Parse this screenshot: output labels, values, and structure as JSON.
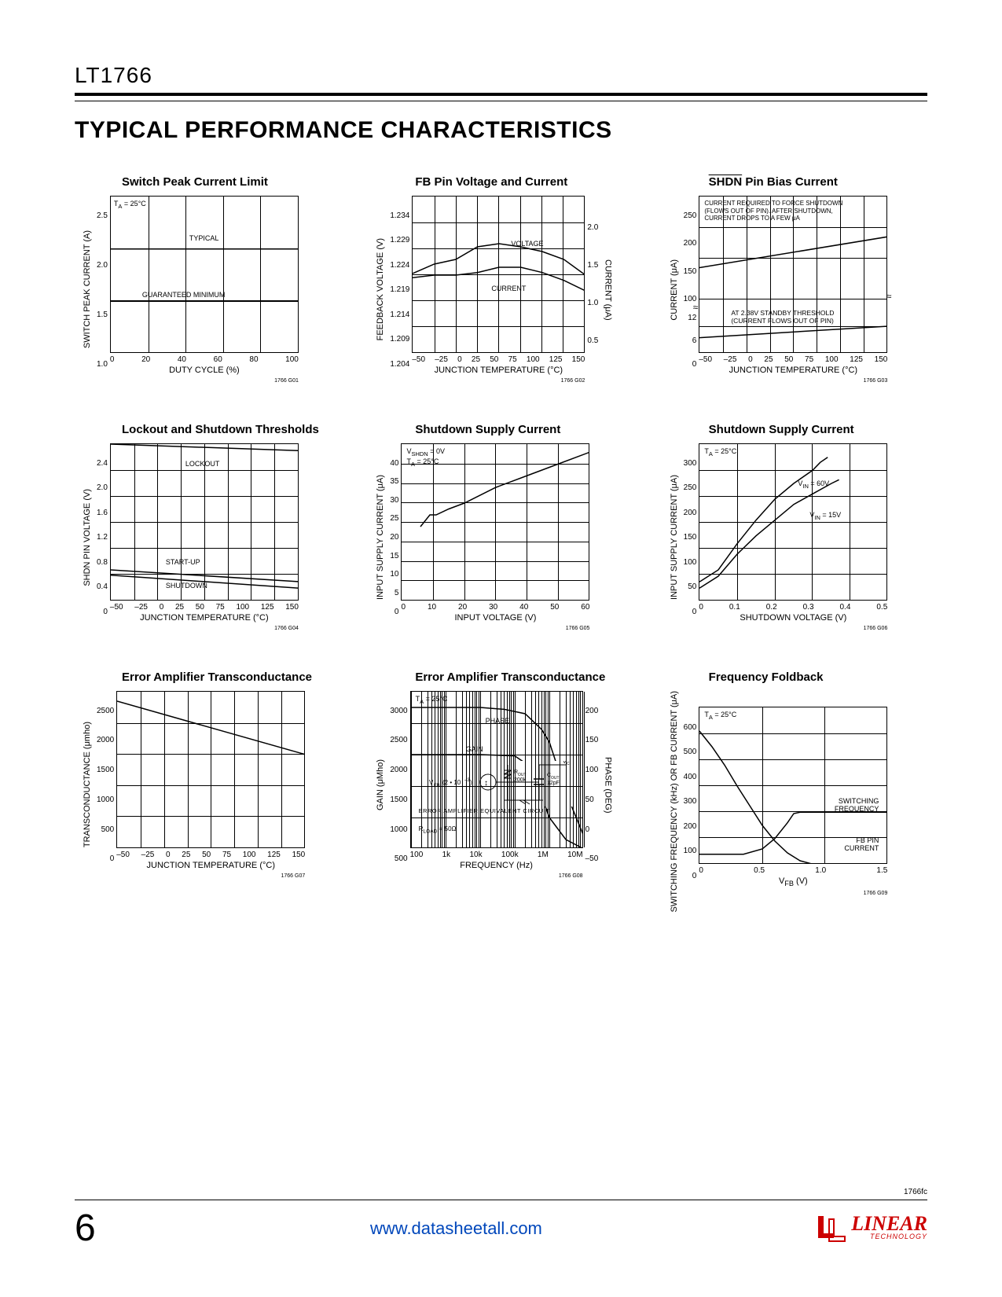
{
  "meta": {
    "part_number": "LT1766",
    "section_title": "TYPICAL PERFORMANCE CHARACTERISTICS",
    "doc_code": "1766fc",
    "page_number": "6",
    "footer_url": "www.datasheetall.com",
    "logo_brand": "LINEAR",
    "logo_sub": "TECHNOLOGY"
  },
  "charts": {
    "c1": {
      "title": "Switch Peak Current Limit",
      "ylabel": "SWITCH PEAK CURRENT (A)",
      "xlabel": "DUTY CYCLE (%)",
      "graph_id": "1766 G01",
      "xlim": [
        0,
        100
      ],
      "xticks": [
        "0",
        "20",
        "40",
        "60",
        "80",
        "100"
      ],
      "ylim": [
        1.0,
        2.5
      ],
      "yticks": [
        "2.5",
        "2.0",
        "1.5",
        "1.0"
      ],
      "annotations": {
        "ta": "T_A = 25°C",
        "typical": "TYPICAL",
        "guaranteed": "GUARANTEED MINIMUM"
      },
      "series": [
        {
          "label": "TYPICAL",
          "points": [
            [
              0,
              2.0
            ],
            [
              100,
              2.0
            ]
          ]
        },
        {
          "label": "GUARANTEED MINIMUM",
          "points": [
            [
              0,
              1.5
            ],
            [
              100,
              1.5
            ]
          ]
        }
      ]
    },
    "c2": {
      "title": "FB Pin Voltage and Current",
      "ylabel": "FEEDBACK VOLTAGE (V)",
      "ylabel2": "CURRENT (μA)",
      "xlabel": "JUNCTION TEMPERATURE (°C)",
      "graph_id": "1766 G02",
      "xlim": [
        -50,
        150
      ],
      "xticks": [
        "–50",
        "–25",
        "0",
        "25",
        "50",
        "75",
        "100",
        "125",
        "150"
      ],
      "ylim": [
        1.204,
        1.234
      ],
      "yticks": [
        "1.234",
        "1.229",
        "1.224",
        "1.219",
        "1.214",
        "1.209",
        "1.204"
      ],
      "ylim2": [
        0,
        2.0
      ],
      "yticks2": [
        "2.0",
        "1.5",
        "1.0",
        "0.5"
      ],
      "annotations": {
        "voltage": "VOLTAGE",
        "current": "CURRENT"
      },
      "series": [
        {
          "label": "VOLTAGE",
          "points": [
            [
              -50,
              1.2185
            ],
            [
              -25,
              1.219
            ],
            [
              0,
              1.219
            ],
            [
              25,
              1.2195
            ],
            [
              50,
              1.2205
            ],
            [
              75,
              1.2205
            ],
            [
              100,
              1.2195
            ],
            [
              125,
              1.218
            ],
            [
              150,
              1.216
            ]
          ]
        },
        {
          "label": "CURRENT",
          "points": [
            [
              -50,
              0.51
            ],
            [
              -25,
              0.57
            ],
            [
              0,
              0.6
            ],
            [
              25,
              0.68
            ],
            [
              50,
              0.7
            ],
            [
              75,
              0.68
            ],
            [
              100,
              0.65
            ],
            [
              125,
              0.6
            ],
            [
              150,
              0.5
            ]
          ]
        }
      ]
    },
    "c3": {
      "title_overline": "SHDN",
      "title_rest": " Pin Bias Current",
      "ylabel": "CURRENT (μA)",
      "xlabel": "JUNCTION TEMPERATURE (°C)",
      "graph_id": "1766 G03",
      "xlim": [
        -50,
        150
      ],
      "xticks": [
        "–50",
        "–25",
        "0",
        "25",
        "50",
        "75",
        "100",
        "125",
        "150"
      ],
      "yticks_upper": [
        "250",
        "200",
        "150",
        "100"
      ],
      "yticks_lower": [
        "12",
        "6",
        "0"
      ],
      "annotations": {
        "a1": "CURRENT REQUIRED TO FORCE SHUTDOWN",
        "a2": "(FLOWS OUT OF PIN). AFTER SHUTDOWN,",
        "a3": "CURRENT DROPS TO A FEW μA",
        "b1": "AT 2.38V STANDBY THRESHOLD",
        "b2": "(CURRENT FLOWS OUT OF PIN)"
      },
      "series_upper": [
        [
          -50,
          135
        ],
        [
          150,
          185
        ]
      ],
      "series_lower": [
        [
          -50,
          3.5
        ],
        [
          150,
          6.0
        ]
      ]
    },
    "c4": {
      "title": "Lockout and Shutdown Thresholds",
      "ylabel": "SHDN PIN VOLTAGE (V)",
      "xlabel": "JUNCTION TEMPERATURE (°C)",
      "graph_id": "1766 G04",
      "xlim": [
        -50,
        150
      ],
      "xticks": [
        "–50",
        "–25",
        "0",
        "25",
        "50",
        "75",
        "100",
        "125",
        "150"
      ],
      "ylim": [
        0,
        2.4
      ],
      "yticks": [
        "2.4",
        "2.0",
        "1.6",
        "1.2",
        "0.8",
        "0.4",
        "0"
      ],
      "annotations": {
        "lockout": "LOCKOUT",
        "startup": "START-UP",
        "shutdown": "SHUTDOWN"
      },
      "series": [
        {
          "label": "LOCKOUT",
          "points": [
            [
              -50,
              2.4
            ],
            [
              150,
              2.3
            ]
          ]
        },
        {
          "label": "START-UP",
          "points": [
            [
              -50,
              0.48
            ],
            [
              150,
              0.3
            ]
          ]
        },
        {
          "label": "SHUTDOWN",
          "points": [
            [
              -50,
              0.4
            ],
            [
              150,
              0.2
            ]
          ]
        }
      ]
    },
    "c5": {
      "title": "Shutdown Supply Current",
      "ylabel": "INPUT SUPPLY CURRENT (μA)",
      "xlabel": "INPUT VOLTAGE (V)",
      "graph_id": "1766 G05",
      "xlim": [
        0,
        60
      ],
      "xticks": [
        "0",
        "10",
        "20",
        "30",
        "40",
        "50",
        "60"
      ],
      "ylim": [
        0,
        40
      ],
      "yticks": [
        "40",
        "35",
        "30",
        "25",
        "20",
        "15",
        "10",
        "5",
        "0"
      ],
      "annotations": {
        "a1": "V_SHDN = 0V",
        "a2": "T_A = 25°C"
      },
      "series": [
        {
          "points": [
            [
              6,
              19
            ],
            [
              9,
              22
            ],
            [
              11,
              22
            ],
            [
              15,
              23.5
            ],
            [
              20,
              25
            ],
            [
              30,
              29
            ],
            [
              40,
              32
            ],
            [
              50,
              35
            ],
            [
              60,
              38
            ]
          ]
        }
      ]
    },
    "c6": {
      "title": "Shutdown Supply Current",
      "ylabel": "INPUT SUPPLY CURRENT (μA)",
      "xlabel": "SHUTDOWN VOLTAGE (V)",
      "graph_id": "1766 G06",
      "xlim": [
        0,
        0.5
      ],
      "xticks": [
        "0",
        "0.1",
        "0.2",
        "0.3",
        "0.4",
        "0.5"
      ],
      "ylim": [
        0,
        300
      ],
      "yticks": [
        "300",
        "250",
        "200",
        "150",
        "100",
        "50",
        "0"
      ],
      "annotations": {
        "ta": "T_A = 25°C",
        "v60": "V_IN = 60V",
        "v15": "V_IN = 15V"
      },
      "series": [
        {
          "label": "V_IN=60V",
          "points": [
            [
              0,
              37
            ],
            [
              0.05,
              60
            ],
            [
              0.1,
              110
            ],
            [
              0.15,
              155
            ],
            [
              0.2,
              195
            ],
            [
              0.25,
              225
            ],
            [
              0.3,
              250
            ],
            [
              0.32,
              265
            ],
            [
              0.34,
              275
            ]
          ]
        },
        {
          "label": "V_IN=15V",
          "points": [
            [
              0,
              25
            ],
            [
              0.05,
              48
            ],
            [
              0.1,
              90
            ],
            [
              0.15,
              125
            ],
            [
              0.2,
              155
            ],
            [
              0.25,
              185
            ],
            [
              0.3,
              205
            ],
            [
              0.35,
              225
            ],
            [
              0.37,
              232
            ]
          ]
        }
      ]
    },
    "c7": {
      "title": "Error Amplifier Transconductance",
      "ylabel": "TRANSCONDUCTANCE (μmho)",
      "xlabel": "JUNCTION TEMPERATURE (°C)",
      "graph_id": "1766 G07",
      "xlim": [
        -50,
        150
      ],
      "xticks": [
        "–50",
        "–25",
        "0",
        "25",
        "50",
        "75",
        "100",
        "125",
        "150"
      ],
      "ylim": [
        0,
        2500
      ],
      "yticks": [
        "2500",
        "2000",
        "1500",
        "1000",
        "500",
        "0"
      ],
      "series": [
        {
          "points": [
            [
              -50,
              2350
            ],
            [
              150,
              1500
            ]
          ]
        }
      ]
    },
    "c8": {
      "title": "Error Amplifier Transconductance",
      "ylabel": "GAIN (μMho)",
      "ylabel2": "PHASE (DEG)",
      "xlabel": "FREQUENCY (Hz)",
      "graph_id": "1766 G08",
      "xticks": [
        "100",
        "1k",
        "10k",
        "100k",
        "1M",
        "10M"
      ],
      "ylim": [
        500,
        3000
      ],
      "yticks": [
        "3000",
        "2500",
        "2000",
        "1500",
        "1000",
        "500"
      ],
      "ylim2": [
        -50,
        200
      ],
      "yticks2": [
        "200",
        "150",
        "100",
        "50",
        "0",
        "–50"
      ],
      "annotations": {
        "ta": "T_A = 25°C",
        "phase": "PHASE",
        "gain": "GAIN",
        "eq": "ERROR AMPLIFIER EQUIVALENT CIRCUIT",
        "rload": "R_LOAD = 50Ω",
        "vfb": "V_FB (2 • 10^–3)",
        "vc": "V_C",
        "rout": "R_OUT 200k",
        "cout": "C_OUT 12pF"
      },
      "series": [
        {
          "label": "GAIN",
          "points_log": [
            [
              100,
              2000
            ],
            [
              1000,
              2000
            ],
            [
              10000,
              2000
            ],
            [
              100000,
              1980
            ],
            [
              300000,
              1800
            ],
            [
              1000000,
              1000
            ],
            [
              3000000,
              650
            ],
            [
              10000000,
              500
            ]
          ]
        },
        {
          "label": "PHASE",
          "points_log": [
            [
              100,
              2750
            ],
            [
              1000,
              2750
            ],
            [
              10000,
              2750
            ],
            [
              50000,
              2720
            ],
            [
              200000,
              2650
            ],
            [
              600000,
              2400
            ],
            [
              1000000,
              2200
            ],
            [
              3000000,
              1400
            ],
            [
              10000000,
              700
            ]
          ]
        }
      ]
    },
    "c9": {
      "title": "Frequency Foldback",
      "ylabel": "SWITCHING FREQUENCY (kHz) OR FB CURRENT (μA)",
      "xlabel": "V_FB (V)",
      "graph_id": "1766 G09",
      "xlim": [
        0,
        1.5
      ],
      "xticks": [
        "0",
        "0.5",
        "1.0",
        "1.5"
      ],
      "ylim": [
        0,
        600
      ],
      "yticks": [
        "600",
        "500",
        "400",
        "300",
        "200",
        "100",
        "0"
      ],
      "annotations": {
        "ta": "T_A = 25°C",
        "sw": "SWITCHING FREQUENCY",
        "fb": "FB PIN CURRENT"
      },
      "series": [
        {
          "label": "SWITCHING FREQUENCY",
          "points": [
            [
              0,
              40
            ],
            [
              0.35,
              40
            ],
            [
              0.5,
              60
            ],
            [
              0.6,
              100
            ],
            [
              0.7,
              160
            ],
            [
              0.75,
              195
            ],
            [
              0.8,
              200
            ],
            [
              1.5,
              200
            ]
          ]
        },
        {
          "label": "FB PIN CURRENT",
          "points": [
            [
              0,
              510
            ],
            [
              0.1,
              450
            ],
            [
              0.2,
              380
            ],
            [
              0.3,
              300
            ],
            [
              0.4,
              225
            ],
            [
              0.5,
              150
            ],
            [
              0.6,
              90
            ],
            [
              0.7,
              45
            ],
            [
              0.8,
              15
            ],
            [
              0.9,
              2
            ],
            [
              1.5,
              0
            ]
          ]
        }
      ]
    }
  }
}
